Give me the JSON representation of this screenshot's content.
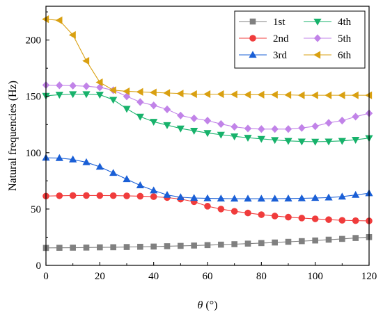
{
  "chart_data": {
    "type": "line",
    "xlabel_symbol": "θ",
    "xlabel_unit": " (°)",
    "ylabel": "Natural frequencies (Hz)",
    "xlim": [
      0,
      120
    ],
    "ylim": [
      0,
      230
    ],
    "xticks": [
      0,
      20,
      40,
      60,
      80,
      100,
      120
    ],
    "yticks": [
      0,
      50,
      100,
      150,
      200
    ],
    "grid": false,
    "legend_position": "top-right",
    "x": [
      0,
      5,
      10,
      15,
      20,
      25,
      30,
      35,
      40,
      45,
      50,
      55,
      60,
      65,
      70,
      75,
      80,
      85,
      90,
      95,
      100,
      105,
      110,
      115,
      120
    ],
    "series": [
      {
        "name": "1st",
        "color": "#808080",
        "marker": "square",
        "values": [
          15.5,
          15.6,
          15.7,
          15.8,
          16.0,
          16.1,
          16.3,
          16.5,
          16.7,
          17.0,
          17.3,
          17.6,
          18.0,
          18.4,
          18.8,
          19.3,
          19.8,
          20.3,
          20.9,
          21.5,
          22.1,
          22.8,
          23.5,
          24.3,
          25.1
        ]
      },
      {
        "name": "2nd",
        "color": "#f03c3c",
        "marker": "circle",
        "values": [
          61.5,
          61.8,
          62.0,
          62.0,
          62.0,
          61.9,
          61.7,
          61.4,
          61.0,
          60.2,
          58.8,
          56.5,
          52.5,
          50.0,
          48.0,
          46.5,
          45.0,
          43.8,
          42.8,
          42.0,
          41.3,
          40.6,
          40.0,
          39.7,
          39.5
        ]
      },
      {
        "name": "3rd",
        "color": "#1a5fd6",
        "marker": "triangle-up",
        "values": [
          95.5,
          95.2,
          94.0,
          91.5,
          87.5,
          82.0,
          76.5,
          71.0,
          66.5,
          62.5,
          60.5,
          59.8,
          59.5,
          59.3,
          59.2,
          59.2,
          59.2,
          59.2,
          59.3,
          59.5,
          59.8,
          60.2,
          61.0,
          62.5,
          64.0
        ]
      },
      {
        "name": "4th",
        "color": "#17b26b",
        "marker": "triangle-down",
        "values": [
          150.5,
          151.5,
          152.0,
          152.0,
          151.5,
          147.0,
          139.0,
          132.0,
          127.5,
          124.5,
          121.5,
          119.5,
          117.5,
          116.0,
          114.5,
          113.3,
          112.3,
          111.3,
          110.5,
          110.0,
          109.8,
          110.0,
          110.5,
          111.5,
          113.0
        ]
      },
      {
        "name": "5th",
        "color": "#c183e8",
        "marker": "diamond",
        "values": [
          160.0,
          159.8,
          159.5,
          159.0,
          158.0,
          155.5,
          150.0,
          145.0,
          142.0,
          138.5,
          133.0,
          130.5,
          128.5,
          125.5,
          123.0,
          121.5,
          121.0,
          121.0,
          121.0,
          122.0,
          123.5,
          126.5,
          128.5,
          132.0,
          135.0
        ]
      },
      {
        "name": "6th",
        "color": "#d9a011",
        "marker": "triangle-left",
        "values": [
          218.5,
          217.5,
          204.5,
          181.5,
          162.5,
          155.5,
          154.5,
          154.0,
          153.5,
          153.0,
          152.5,
          152.0,
          152.0,
          152.0,
          151.8,
          151.5,
          151.5,
          151.5,
          151.3,
          151.0,
          151.0,
          151.0,
          151.0,
          151.0,
          151.0
        ]
      }
    ]
  }
}
